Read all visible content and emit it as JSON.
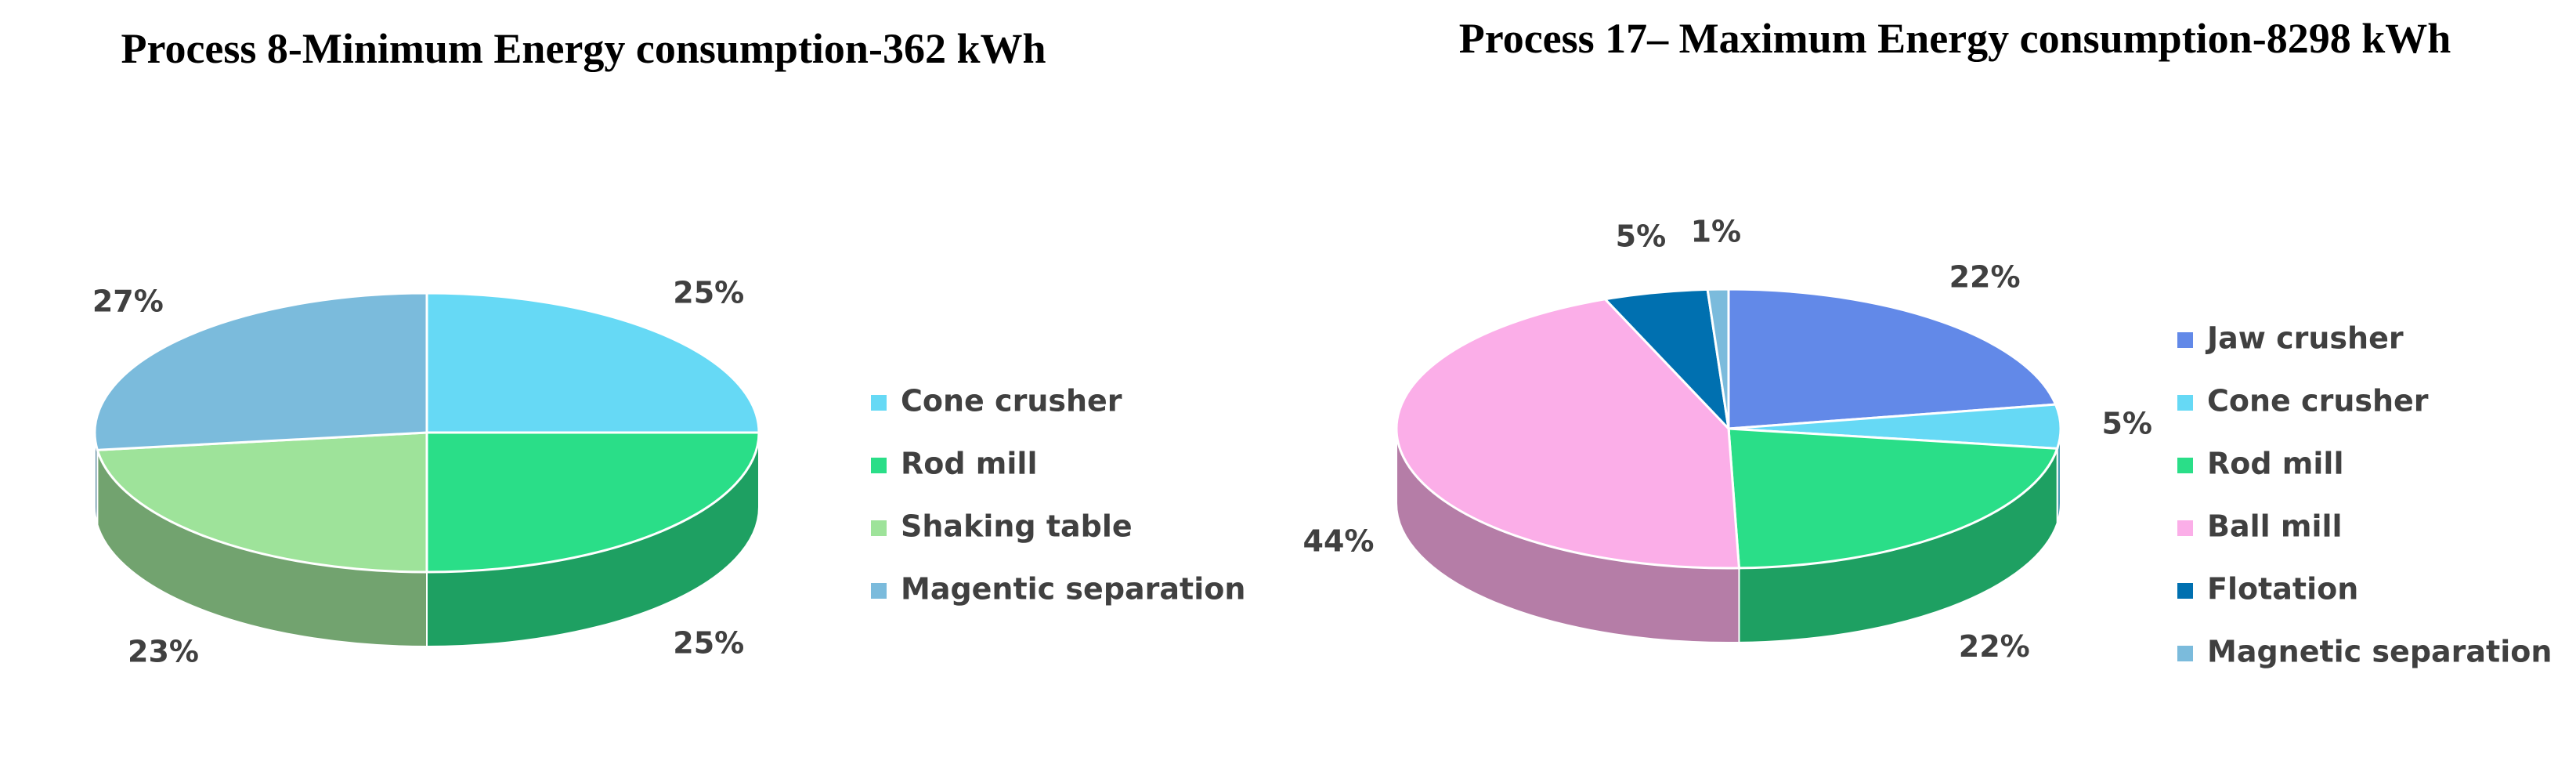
{
  "chart_data": [
    {
      "type": "pie",
      "title": "Process 8-Minimum Energy consumption-362 kWh",
      "categories": [
        "Cone crusher",
        "Rod mill",
        "Shaking table",
        "Magentic separation"
      ],
      "values": [
        25,
        25,
        23,
        27
      ],
      "value_labels": [
        "25%",
        "25%",
        "23%",
        "27%"
      ],
      "colors": [
        "#66d9f5",
        "#2ade88",
        "#9ee39a",
        "#7bbbdc"
      ]
    },
    {
      "type": "pie",
      "title": "Process 17– Maximum Energy consumption-8298 kWh",
      "categories": [
        "Jaw crusher",
        "Cone crusher",
        "Rod mill",
        "Ball mill",
        "Flotation",
        "Magnetic separation"
      ],
      "values": [
        22,
        5,
        22,
        44,
        5,
        1
      ],
      "value_labels": [
        "22%",
        "5%",
        "22%",
        "44%",
        "5%",
        "1%"
      ],
      "colors": [
        "#6289e8",
        "#66d9f5",
        "#2ade88",
        "#fbaee8",
        "#0070b0",
        "#7bbbdc"
      ]
    }
  ]
}
